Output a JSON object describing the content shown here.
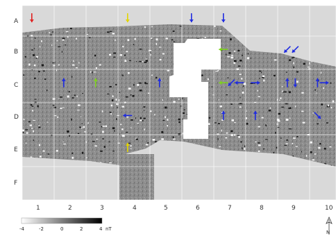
{
  "grid": {
    "row_labels": [
      "A",
      "B",
      "C",
      "D",
      "E",
      "F"
    ],
    "col_labels": [
      "1",
      "2",
      "3",
      "4",
      "5",
      "6",
      "7",
      "8",
      "9",
      "10"
    ]
  },
  "scale": {
    "tick_labels": [
      "-4",
      "-2",
      "0",
      "2",
      "4"
    ],
    "unit": "nT"
  },
  "north": {
    "label": "N"
  },
  "colors": {
    "background": "#d9d9d9",
    "grid_line": "#ffffff",
    "blue_arrow": "#1f2be0",
    "yellow_arrow": "#e2d400",
    "green_arrow": "#7fd21e",
    "red_arrow": "#e02020"
  },
  "arrows": [
    {
      "color": "red",
      "dir": "down",
      "col": 1,
      "row": "A"
    },
    {
      "color": "yellow",
      "dir": "down",
      "col": 4,
      "row": "A"
    },
    {
      "color": "blue",
      "dir": "down",
      "col": 6,
      "row": "A"
    },
    {
      "color": "blue",
      "dir": "down",
      "col": 7,
      "row": "A"
    },
    {
      "color": "green",
      "dir": "left",
      "col": 7,
      "row": "B"
    },
    {
      "color": "green",
      "dir": "left",
      "col": 7,
      "row": "C"
    },
    {
      "color": "blue",
      "dir": "up",
      "col": 2,
      "row": "C"
    },
    {
      "color": "green",
      "dir": "up",
      "col": 3,
      "row": "C"
    },
    {
      "color": "blue",
      "dir": "up",
      "col": 5,
      "row": "C"
    },
    {
      "color": "blue",
      "dir": "down-left",
      "col": 7,
      "row": "C"
    },
    {
      "color": "blue",
      "dir": "left",
      "col": 7,
      "row": "C"
    },
    {
      "color": "blue",
      "dir": "right",
      "col": 8,
      "row": "C"
    },
    {
      "color": "blue",
      "dir": "down-left",
      "col": 9,
      "row": "B"
    },
    {
      "color": "blue",
      "dir": "down-left",
      "col": 9,
      "row": "B"
    },
    {
      "color": "blue",
      "dir": "up",
      "col": 9,
      "row": "C"
    },
    {
      "color": "blue",
      "dir": "up",
      "col": 10,
      "row": "C"
    },
    {
      "color": "blue",
      "dir": "down",
      "col": 9,
      "row": "C"
    },
    {
      "color": "blue",
      "dir": "right",
      "col": 10,
      "row": "C"
    },
    {
      "color": "blue",
      "dir": "up",
      "col": 7,
      "row": "D"
    },
    {
      "color": "blue",
      "dir": "left",
      "col": 4,
      "row": "D"
    },
    {
      "color": "blue",
      "dir": "up",
      "col": 8,
      "row": "D"
    },
    {
      "color": "blue",
      "dir": "down-right",
      "col": 10,
      "row": "D"
    },
    {
      "color": "yellow",
      "dir": "up",
      "col": 4,
      "row": "E"
    }
  ]
}
